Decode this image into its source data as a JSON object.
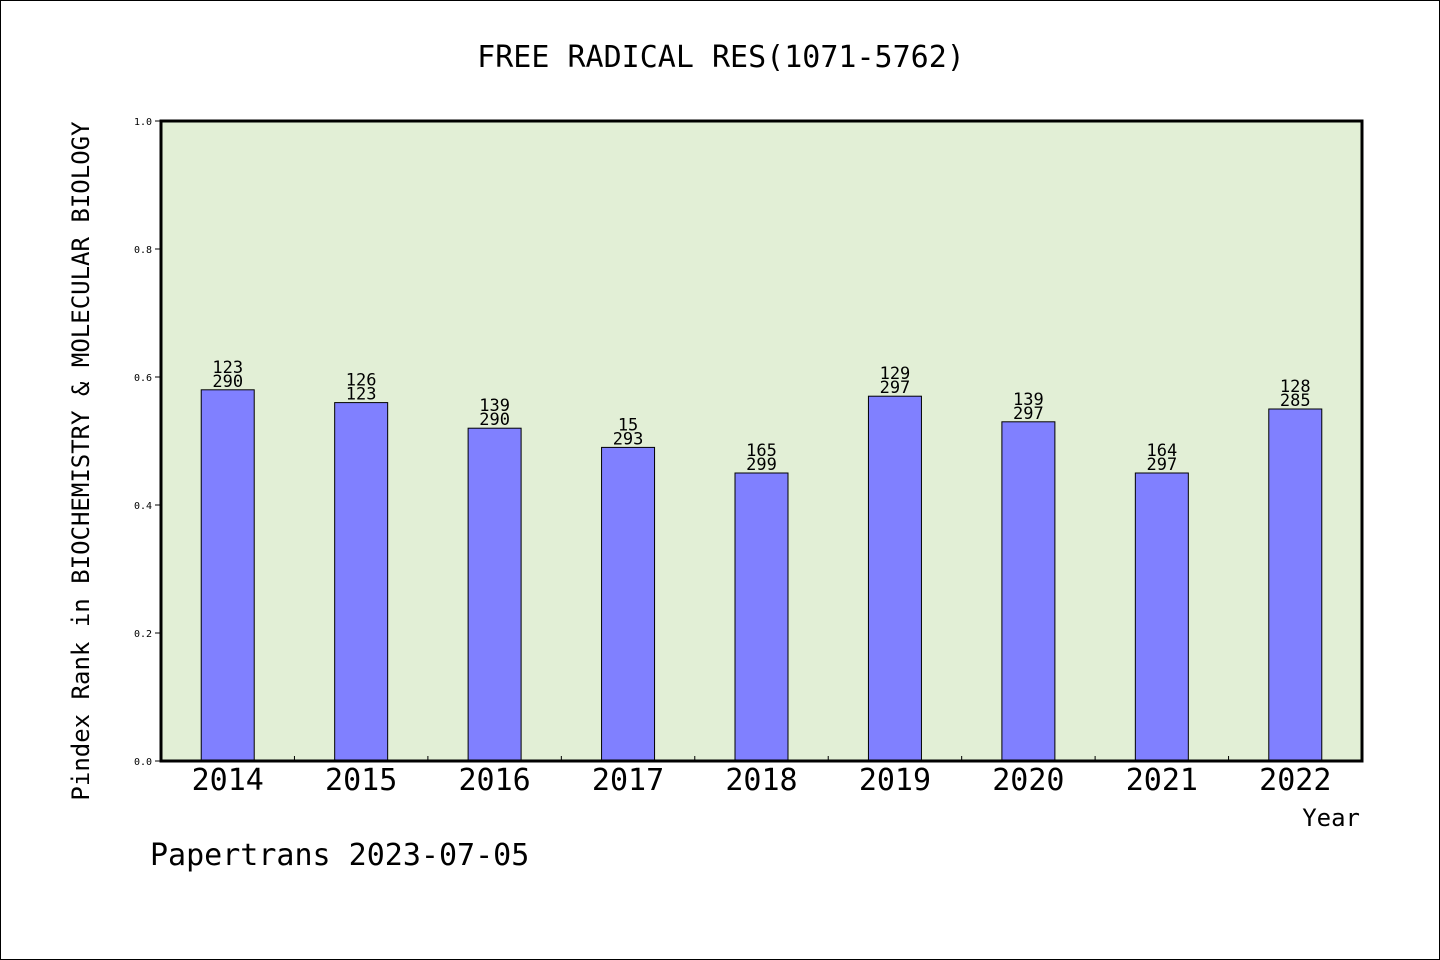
{
  "chart_data": {
    "type": "bar",
    "title": "FREE RADICAL RES(1071-5762)",
    "xlabel": "Year",
    "ylabel": "Pindex Rank in BIOCHEMISTRY & MOLECULAR BIOLOGY",
    "ylim": [
      0,
      1.0
    ],
    "yticks": [
      "0.0",
      "0.2",
      "0.4",
      "0.6",
      "0.8",
      "1.0"
    ],
    "categories": [
      "2014",
      "2015",
      "2016",
      "2017",
      "2018",
      "2019",
      "2020",
      "2021",
      "2022"
    ],
    "values": [
      0.58,
      0.56,
      0.52,
      0.49,
      0.45,
      0.57,
      0.53,
      0.45,
      0.55
    ],
    "bar_labels_top": [
      "123",
      "126",
      "139",
      "15",
      "165",
      "129",
      "139",
      "164",
      "128"
    ],
    "bar_labels_bottom": [
      "290",
      "123",
      "290",
      "293",
      "299",
      "297",
      "297",
      "297",
      "285"
    ],
    "grid": false,
    "colors": {
      "bar": "#8080ff",
      "plot_background": "#e2efd6",
      "axis": "#000000"
    }
  },
  "footer": "Papertrans 2023-07-05"
}
